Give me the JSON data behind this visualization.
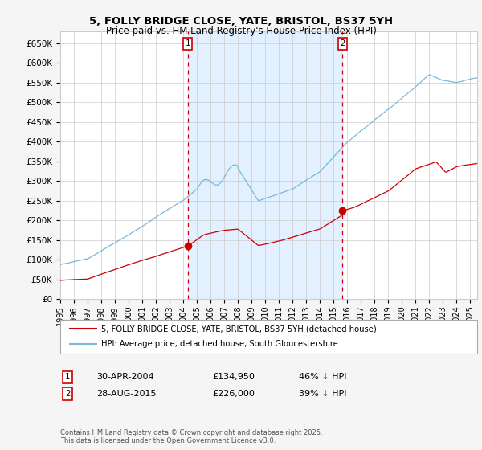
{
  "title": "5, FOLLY BRIDGE CLOSE, YATE, BRISTOL, BS37 5YH",
  "subtitle": "Price paid vs. HM Land Registry's House Price Index (HPI)",
  "legend_line1": "5, FOLLY BRIDGE CLOSE, YATE, BRISTOL, BS37 5YH (detached house)",
  "legend_line2": "HPI: Average price, detached house, South Gloucestershire",
  "annotation1_date": "30-APR-2004",
  "annotation1_price": "£134,950",
  "annotation1_hpi": "46% ↓ HPI",
  "annotation2_date": "28-AUG-2015",
  "annotation2_price": "£226,000",
  "annotation2_hpi": "39% ↓ HPI",
  "footer": "Contains HM Land Registry data © Crown copyright and database right 2025.\nThis data is licensed under the Open Government Licence v3.0.",
  "hpi_color": "#7ab8d9",
  "house_color": "#cc0000",
  "vline_color": "#cc0000",
  "bg_shaded_color": "#ddeeff",
  "ylim": [
    0,
    680000
  ],
  "yticks": [
    0,
    50000,
    100000,
    150000,
    200000,
    250000,
    300000,
    350000,
    400000,
    450000,
    500000,
    550000,
    600000,
    650000
  ],
  "vline1_x": 2004.33,
  "vline2_x": 2015.65,
  "marker1_x": 2004.33,
  "marker1_y": 134950,
  "marker2_x": 2015.65,
  "marker2_y": 226000,
  "xmin": 1995.0,
  "xmax": 2025.5
}
